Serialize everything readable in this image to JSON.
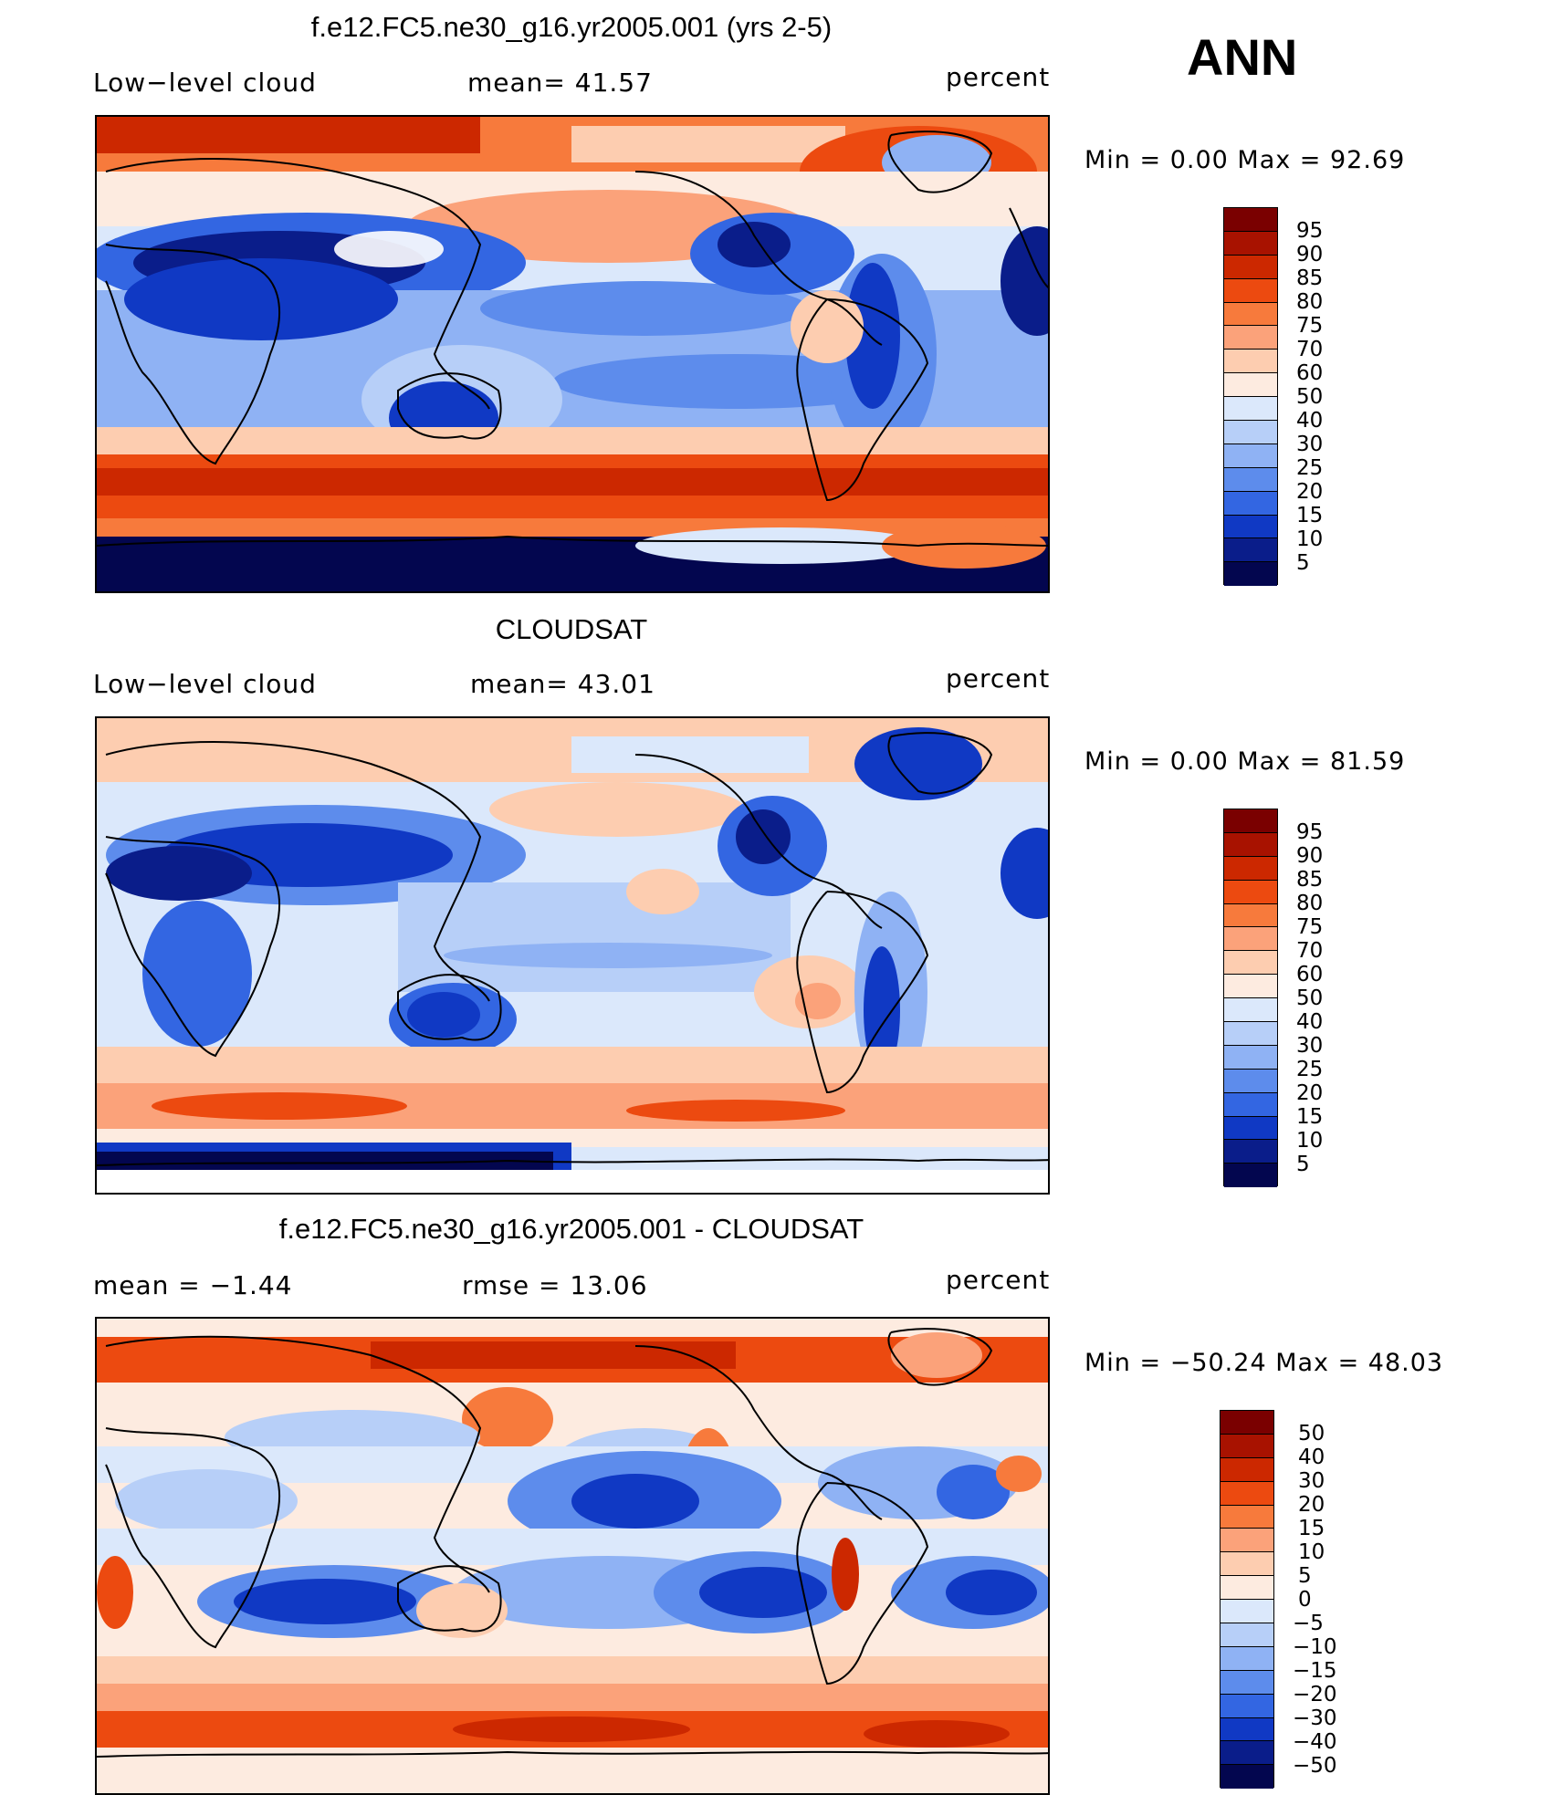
{
  "season": "ANN",
  "panels": [
    {
      "title": "f.e12.FC5.ne30_g16.yr2005.001 (yrs 2-5)",
      "left_label": "Low−level  cloud",
      "center_label": "mean=   41.57",
      "units": "percent",
      "minmax": "Min  =     0.00  Max  =    92.69",
      "colorbar_labels": [
        "95",
        "90",
        "85",
        "80",
        "75",
        "70",
        "60",
        "50",
        "40",
        "30",
        "25",
        "20",
        "15",
        "10",
        "5"
      ]
    },
    {
      "title": "CLOUDSAT",
      "left_label": "Low−level  cloud",
      "center_label": "mean=   43.01",
      "units": "percent",
      "minmax": "Min  =     0.00  Max  =    81.59",
      "colorbar_labels": [
        "95",
        "90",
        "85",
        "80",
        "75",
        "70",
        "60",
        "50",
        "40",
        "30",
        "25",
        "20",
        "15",
        "10",
        "5"
      ]
    },
    {
      "title": "f.e12.FC5.ne30_g16.yr2005.001 - CLOUDSAT",
      "left_label": "mean  =    −1.44",
      "center_label": "rmse  =    13.06",
      "units": "percent",
      "minmax": "Min  =  −50.24  Max  =    48.03",
      "colorbar_labels": [
        "50",
        "40",
        "30",
        "20",
        "15",
        "10",
        "5",
        "0",
        "−5",
        "−10",
        "−15",
        "−20",
        "−30",
        "−40",
        "−50"
      ]
    }
  ],
  "palette": [
    "#7a0000",
    "#a81200",
    "#cc2800",
    "#ec4a10",
    "#f77a3c",
    "#fba27a",
    "#fdcdb0",
    "#fdebe0",
    "#dbe8fb",
    "#b7cff8",
    "#8fb2f4",
    "#5d8cec",
    "#3366e2",
    "#1039c4",
    "#0a1d8a",
    "#03064f"
  ]
}
